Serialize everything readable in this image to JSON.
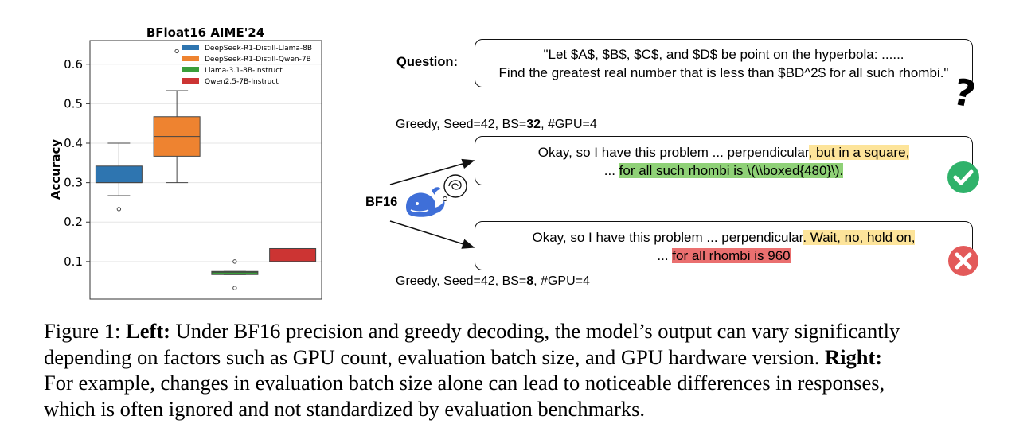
{
  "chart_data": {
    "type": "box",
    "title": "BFloat16 AIME'24",
    "xlabel": "",
    "ylabel": "Accuracy",
    "ylim": [
      0.005,
      0.66
    ],
    "yticks": [
      "0.1",
      "0.2",
      "0.3",
      "0.4",
      "0.5",
      "0.6"
    ],
    "legend_position": "top-right",
    "grid": true,
    "series": [
      {
        "name": "DeepSeek-R1-Distill-Llama-8B",
        "color": "#2e75b0",
        "q1": 0.3,
        "median": 0.3,
        "q3": 0.342,
        "whisker_low": 0.267,
        "whisker_high": 0.4,
        "outliers": [
          0.233
        ]
      },
      {
        "name": "DeepSeek-R1-Distill-Qwen-7B",
        "color": "#ee8330",
        "q1": 0.367,
        "median": 0.417,
        "q3": 0.467,
        "whisker_low": 0.3,
        "whisker_high": 0.533,
        "outliers": [
          0.633
        ]
      },
      {
        "name": "Llama-3.1-8B-Instruct",
        "color": "#3a9e3a",
        "q1": 0.067,
        "median": 0.073,
        "q3": 0.075,
        "whisker_low": 0.067,
        "whisker_high": 0.075,
        "outliers": [
          0.1,
          0.033
        ]
      },
      {
        "name": "Qwen2.5-7B-Instruct",
        "color": "#cc3433",
        "q1": 0.1,
        "median": 0.1,
        "q3": 0.133,
        "whisker_low": 0.1,
        "whisker_high": 0.133,
        "outliers": []
      }
    ]
  },
  "diagram": {
    "question_label": "Question:",
    "question_lines": [
      "\"Let $A$, $B$, $C$, and $D$ be point on the hyperbola: ......",
      "Find the greatest real number that is less than $BD^2$ for all such rhombi.\""
    ],
    "question_mark": "?",
    "top_meta": {
      "prefix": "Greedy, Seed=42, BS=",
      "bs": "32",
      "suffix": ", #GPU=4"
    },
    "bottom_meta": {
      "prefix": "Greedy, Seed=42, BS=",
      "bs": "8",
      "suffix": ", #GPU=4"
    },
    "bf16_label": "BF16",
    "response_correct": {
      "line1_plain": "Okay, so I have this problem ... perpendicular",
      "line1_highlight": ", but in a square,",
      "line2_plain": "... ",
      "line2_highlight": "for all such rhombi is \\(\\\\boxed{480}\\)."
    },
    "response_wrong": {
      "line1_plain": "Okay, so I have this problem ... perpendicular",
      "line1_highlight": ". Wait, no, hold on,",
      "line2_plain": "... ",
      "line2_highlight": "for all rhombi is 960"
    },
    "colors": {
      "correct": "#2fb26a",
      "wrong": "#e35a5a",
      "whale": "#3f6fd8"
    }
  },
  "caption": {
    "line1_prefix": "Figure 1: ",
    "left_label": "Left:",
    "line1_rest": " Under BF16 precision and greedy decoding, the model’s output can vary significantly",
    "line2_text": "depending on factors such as GPU count, evaluation batch size, and GPU hardware version. ",
    "right_label": "Right:",
    "line3": "For example, changes in evaluation batch size alone can lead to noticeable differences in responses,",
    "line4": "which is often ignored and not standardized by evaluation benchmarks."
  }
}
